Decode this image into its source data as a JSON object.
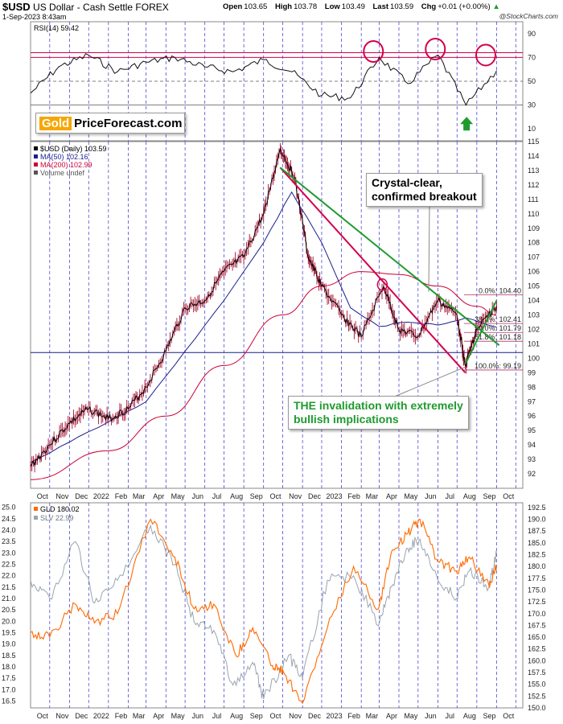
{
  "header": {
    "symbol": "$USD",
    "name": "US Dollar - Cash Settle FOREX",
    "date": "1-Sep-2023 8:43am",
    "open_label": "Open",
    "open": "103.65",
    "high_label": "High",
    "high": "103.78",
    "low_label": "Low",
    "low": "103.49",
    "last_label": "Last",
    "last": "103.59",
    "chg_label": "Chg",
    "chg": "+0.01 (+0.00%)",
    "credit": "@StockCharts.com"
  },
  "logo": {
    "gold": "Gold",
    "rest": "PriceForecast.com"
  },
  "annotations": {
    "breakout": [
      "Crystal-clear,",
      "confirmed breakout"
    ],
    "invalidation": [
      "THE invalidation with extremely",
      "bullish implications"
    ]
  },
  "colors": {
    "price": "#000000",
    "ma50": "#1b1f8c",
    "ma200": "#cc0033",
    "trend_red": "#d4004c",
    "trend_green": "#1f9a2e",
    "fib": "#b0306a",
    "gld": "#ff6a00",
    "slv": "#9aa4b0",
    "month_grid": "#3333cc",
    "annotation_green": "#1f9a2e"
  },
  "chart_data": [
    {
      "type": "line",
      "panel": "RSI",
      "legend": "RSI(14) 59.42",
      "ylim": [
        0,
        100
      ],
      "yticks": [
        10,
        30,
        50,
        70,
        90
      ],
      "reference_lines": [
        30,
        50,
        70,
        74
      ],
      "x": [
        "2021-09-01",
        "2021-10-15",
        "2021-12-01",
        "2022-01-15",
        "2022-03-01",
        "2022-04-15",
        "2022-06-01",
        "2022-07-15",
        "2022-09-01",
        "2022-10-15",
        "2022-12-01",
        "2023-01-15",
        "2023-03-01",
        "2023-04-15",
        "2023-06-01",
        "2023-07-15",
        "2023-09-01"
      ],
      "values": [
        40,
        62,
        72,
        58,
        66,
        70,
        62,
        58,
        68,
        58,
        38,
        36,
        70,
        48,
        72,
        30,
        59
      ]
    },
    {
      "type": "line",
      "panel": "USD",
      "legend": [
        "$USD (Daily) 103.59",
        "MA(50) 102.16",
        "MA(200) 102.99",
        "Volume undef"
      ],
      "ylim": [
        91,
        115
      ],
      "yticks": [
        92,
        93,
        94,
        95,
        96,
        97,
        98,
        99,
        100,
        101,
        102,
        103,
        104,
        105,
        106,
        107,
        108,
        109,
        110,
        111,
        112,
        113,
        114,
        115
      ],
      "x_tick_labels": [
        "Oct",
        "Nov",
        "Dec",
        "2022",
        "Feb",
        "Mar",
        "Apr",
        "May",
        "Jun",
        "Jul",
        "Aug",
        "Sep",
        "Oct",
        "Nov",
        "Dec",
        "2023",
        "Feb",
        "Mar",
        "Apr",
        "May",
        "Jun",
        "Jul",
        "Aug",
        "Sep",
        "Oct"
      ],
      "series": [
        {
          "name": "$USD (Daily)",
          "x": [
            "2021-09-01",
            "2021-10-01",
            "2021-11-01",
            "2021-12-01",
            "2022-01-01",
            "2022-02-01",
            "2022-03-01",
            "2022-04-01",
            "2022-05-01",
            "2022-06-01",
            "2022-07-01",
            "2022-08-01",
            "2022-09-01",
            "2022-09-27",
            "2022-10-20",
            "2022-11-10",
            "2022-12-01",
            "2023-01-01",
            "2023-02-01",
            "2023-03-08",
            "2023-04-01",
            "2023-05-01",
            "2023-06-01",
            "2023-07-01",
            "2023-07-14",
            "2023-08-01",
            "2023-09-01"
          ],
          "values": [
            92.5,
            94.0,
            95.5,
            96.5,
            95.8,
            96.5,
            98.0,
            100.5,
            103.5,
            104.0,
            106.0,
            107.0,
            110.0,
            114.5,
            112.5,
            107.0,
            105.0,
            103.0,
            101.5,
            105.0,
            102.0,
            101.5,
            104.0,
            103.0,
            99.5,
            102.0,
            103.59
          ]
        },
        {
          "name": "MA(50)",
          "x": [
            "2021-09-01",
            "2021-11-01",
            "2022-01-01",
            "2022-03-01",
            "2022-05-01",
            "2022-07-01",
            "2022-09-01",
            "2022-10-15",
            "2022-12-01",
            "2023-01-15",
            "2023-03-01",
            "2023-04-15",
            "2023-06-01",
            "2023-07-15",
            "2023-09-01"
          ],
          "values": [
            92.8,
            94.2,
            95.6,
            97.0,
            100.5,
            104.0,
            108.0,
            111.5,
            108.0,
            103.5,
            102.2,
            102.5,
            102.3,
            102.8,
            102.16
          ]
        },
        {
          "name": "MA(200)",
          "x": [
            "2021-09-01",
            "2022-01-01",
            "2022-04-01",
            "2022-07-01",
            "2022-10-01",
            "2022-12-01",
            "2023-02-01",
            "2023-04-01",
            "2023-06-01",
            "2023-08-01",
            "2023-09-01"
          ],
          "values": [
            91.6,
            93.6,
            96.0,
            99.5,
            103.0,
            105.0,
            106.0,
            105.8,
            105.0,
            103.6,
            102.99
          ]
        }
      ],
      "trend_lines": [
        {
          "name": "red",
          "from": [
            "2022-09-27",
            113.2
          ],
          "to": [
            "2023-07-14",
            99.0
          ]
        },
        {
          "name": "green",
          "from": [
            "2022-09-27",
            113.2
          ],
          "to": [
            "2023-09-05",
            100.9
          ]
        },
        {
          "name": "green-channel",
          "from": [
            "2023-07-14",
            99.6
          ],
          "to": [
            "2023-09-01",
            104.0
          ]
        }
      ],
      "horizontal_line": 100.4,
      "fibonacci": [
        {
          "label": "0.0%: 104.40",
          "value": 104.4
        },
        {
          "label": "38.2%: 102.41",
          "value": 102.41
        },
        {
          "label": "50.0%: 101.79",
          "value": 101.79
        },
        {
          "label": "61.8%: 101.18",
          "value": 101.18
        },
        {
          "label": "100.0%: 99.19",
          "value": 99.19
        }
      ]
    },
    {
      "type": "line",
      "panel": "GLD/SLV",
      "left_ylim": [
        16.2,
        25.2
      ],
      "left_yticks": [
        16.5,
        17.0,
        17.5,
        18.0,
        18.5,
        19.0,
        19.5,
        20.0,
        20.5,
        21.0,
        21.5,
        22.0,
        22.5,
        23.0,
        23.5,
        24.0,
        24.5,
        25.0
      ],
      "right_ylim": [
        150,
        193.5
      ],
      "right_yticks": [
        150.0,
        152.5,
        155.0,
        157.5,
        160.0,
        162.5,
        165.0,
        167.5,
        170.0,
        172.5,
        175.0,
        177.5,
        180.0,
        182.5,
        185.0,
        187.5,
        190.0,
        192.5
      ],
      "x_tick_labels": [
        "Oct",
        "Nov",
        "Dec",
        "2022",
        "Feb",
        "Mar",
        "Apr",
        "May",
        "Jun",
        "Jul",
        "Aug",
        "Sep",
        "Oct",
        "Nov",
        "Dec",
        "2023",
        "Feb",
        "Mar",
        "Apr",
        "May",
        "Jun",
        "Jul",
        "Aug",
        "Sep",
        "Oct"
      ],
      "series": [
        {
          "name": "GLD",
          "legend": "GLD 180.02",
          "axis": "right",
          "x": [
            "2021-09-01",
            "2021-10-01",
            "2021-11-10",
            "2021-12-10",
            "2022-01-15",
            "2022-03-08",
            "2022-04-15",
            "2022-05-15",
            "2022-06-15",
            "2022-07-20",
            "2022-08-15",
            "2022-09-15",
            "2022-10-01",
            "2022-11-01",
            "2022-12-10",
            "2023-01-20",
            "2023-02-28",
            "2023-03-20",
            "2023-04-15",
            "2023-05-04",
            "2023-06-01",
            "2023-06-30",
            "2023-07-20",
            "2023-08-20",
            "2023-09-01"
          ],
          "values": [
            166,
            165,
            172,
            168,
            170,
            190,
            182,
            171,
            172,
            161,
            167,
            159,
            158,
            151,
            167,
            180,
            171,
            183,
            187,
            190,
            181,
            179,
            182,
            176,
            180.02
          ]
        },
        {
          "name": "SLV",
          "legend": "SLV 22.99",
          "axis": "left",
          "x": [
            "2021-09-01",
            "2021-10-01",
            "2021-11-10",
            "2021-12-10",
            "2022-01-15",
            "2022-03-08",
            "2022-04-15",
            "2022-05-15",
            "2022-06-15",
            "2022-07-15",
            "2022-08-15",
            "2022-09-01",
            "2022-10-10",
            "2022-11-01",
            "2022-12-10",
            "2023-01-20",
            "2023-02-28",
            "2023-03-20",
            "2023-04-15",
            "2023-05-04",
            "2023-06-01",
            "2023-06-30",
            "2023-07-20",
            "2023-08-20",
            "2023-09-01"
          ],
          "values": [
            21.8,
            21.0,
            23.5,
            20.8,
            21.8,
            24.2,
            22.5,
            20.0,
            19.6,
            17.2,
            18.2,
            16.6,
            18.5,
            17.5,
            21.8,
            22.0,
            19.8,
            21.5,
            23.2,
            23.6,
            21.8,
            21.0,
            22.2,
            21.5,
            22.99
          ]
        }
      ]
    }
  ]
}
